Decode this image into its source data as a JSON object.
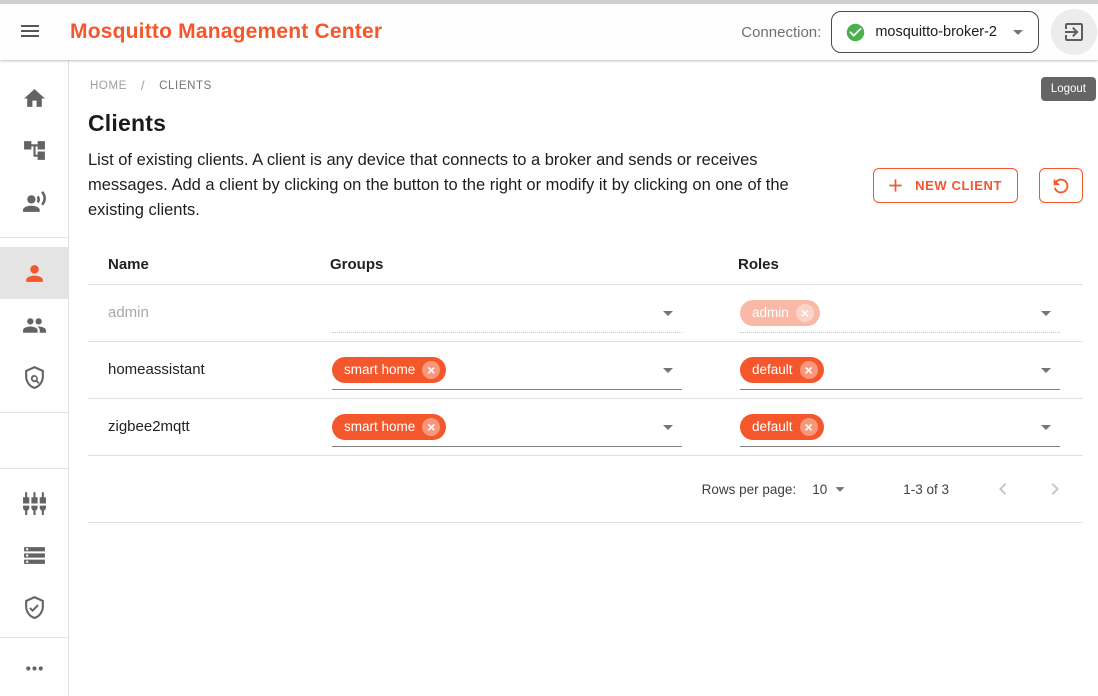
{
  "colors": {
    "primary": "#f4572c",
    "success": "#4caf50",
    "tooltip_bg": "#656565",
    "selected_bg": "#e4e4e4",
    "top_strip": "#cfcfcf",
    "divider": "#e0e0e0"
  },
  "appbar": {
    "title": "Mosquitto Management Center",
    "connection_label": "Connection:",
    "connection_value": "mosquitto-broker-2",
    "connection_status_icon": "check-circle",
    "logout_tooltip": "Logout"
  },
  "sidebar": {
    "selected": "clients",
    "sections": [
      {
        "items": [
          {
            "id": "home",
            "icon": "home"
          },
          {
            "id": "topic-tree",
            "icon": "account-tree"
          },
          {
            "id": "streams",
            "icon": "record-voice"
          }
        ]
      },
      {
        "items": [
          {
            "id": "clients",
            "icon": "person"
          },
          {
            "id": "groups",
            "icon": "people"
          },
          {
            "id": "roles",
            "icon": "shield-search"
          }
        ]
      },
      {
        "items": []
      },
      {
        "items": [
          {
            "id": "plugins",
            "icon": "input-component"
          },
          {
            "id": "info",
            "icon": "storage"
          },
          {
            "id": "security",
            "icon": "shield-check"
          }
        ]
      },
      {
        "items": [
          {
            "id": "more",
            "icon": "more-horiz"
          }
        ]
      }
    ]
  },
  "breadcrumb": {
    "home": "HOME",
    "separator": "/",
    "current": "CLIENTS"
  },
  "page": {
    "title": "Clients",
    "description": "List of existing clients. A client is any device that connects to a broker and sends or receives messages. Add a client by clicking on the button to the right or modify it by clicking on one of the existing clients.",
    "new_client_button": "NEW CLIENT"
  },
  "table": {
    "columns": [
      "Name",
      "Groups",
      "Roles"
    ],
    "rows": [
      {
        "name": "admin",
        "groups": [],
        "roles": [
          "admin"
        ],
        "disabled": true
      },
      {
        "name": "homeassistant",
        "groups": [
          "smart home"
        ],
        "roles": [
          "default"
        ],
        "disabled": false
      },
      {
        "name": "zigbee2mqtt",
        "groups": [
          "smart home"
        ],
        "roles": [
          "default"
        ],
        "disabled": false
      }
    ]
  },
  "pagination": {
    "rows_per_page_label": "Rows per page:",
    "rows_per_page_value": "10",
    "range": "1-3 of 3"
  }
}
